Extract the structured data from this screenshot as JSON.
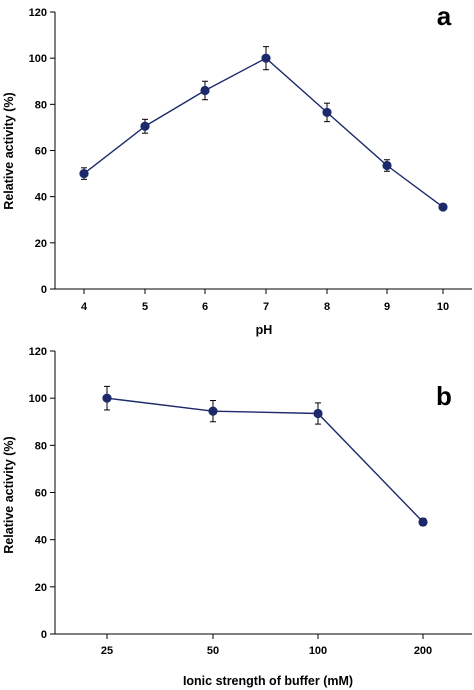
{
  "chart_data": [
    {
      "panel": "a",
      "type": "line",
      "xlabel": "pH",
      "ylabel": "Relative activity (%)",
      "x": [
        4,
        5,
        6,
        7,
        8,
        9,
        10
      ],
      "ylim": [
        0,
        120
      ],
      "yticks": [
        0,
        20,
        40,
        60,
        80,
        100,
        120
      ],
      "series": [
        {
          "values": [
            50,
            70.5,
            86,
            100,
            76.5,
            53.5,
            35.5
          ],
          "errors": [
            2.5,
            3,
            4,
            5,
            4,
            2.5,
            1
          ]
        }
      ],
      "grid": false,
      "colors": {
        "line": "#1c2a6b",
        "marker": "#1c2a6b"
      }
    },
    {
      "panel": "b",
      "type": "line",
      "xlabel": "Ionic strength of buffer (mM)",
      "ylabel": "Relative activity (%)",
      "categories": [
        "25",
        "50",
        "100",
        "200"
      ],
      "ylim": [
        0,
        120
      ],
      "yticks": [
        0,
        20,
        40,
        60,
        80,
        100,
        120
      ],
      "series": [
        {
          "values": [
            100,
            94.5,
            93.5,
            47.5
          ],
          "errors": [
            5,
            4.5,
            4.5,
            1.5
          ]
        }
      ],
      "grid": false,
      "colors": {
        "line": "#1c2a6b",
        "marker": "#1c2a6b"
      }
    }
  ]
}
